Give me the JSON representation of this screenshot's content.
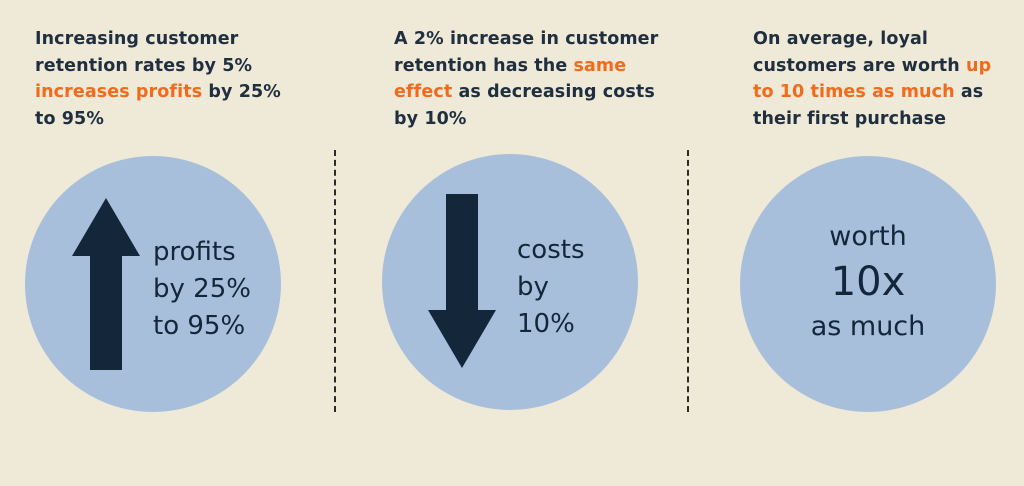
{
  "panel1": {
    "caption": {
      "line1": "Increasing customer",
      "line2a": "retention rates by 5%",
      "line3_hl": "increases profits",
      "line3b": " by 25%",
      "line4": "to 95%"
    },
    "circle": {
      "line1": "profits",
      "line2": "by 25%",
      "line3": "to 95%"
    }
  },
  "panel2": {
    "caption": {
      "line1": "A 2% increase in customer",
      "line2a": "retention has the ",
      "line2_hl": "same",
      "line3_hl": "effect",
      "line3b": " as decreasing costs",
      "line4": "by 10%"
    },
    "circle": {
      "line1": "costs",
      "line2": "by",
      "line3": "10%"
    }
  },
  "panel3": {
    "caption": {
      "line1": "On average, loyal",
      "line2a": "customers are worth ",
      "line2_hl": "up",
      "line3_hl": "to 10 times as much",
      "line3b": " as",
      "line4": "their first purchase"
    },
    "circle": {
      "line1": "worth",
      "line2": "10x",
      "line3": "as much"
    }
  },
  "colors": {
    "background": "#efe9d8",
    "circle": "#a8bfdc",
    "highlight": "#f26a1b",
    "arrow": "#13263a"
  },
  "icons": {
    "up": "arrow-up-icon",
    "down": "arrow-down-icon"
  }
}
